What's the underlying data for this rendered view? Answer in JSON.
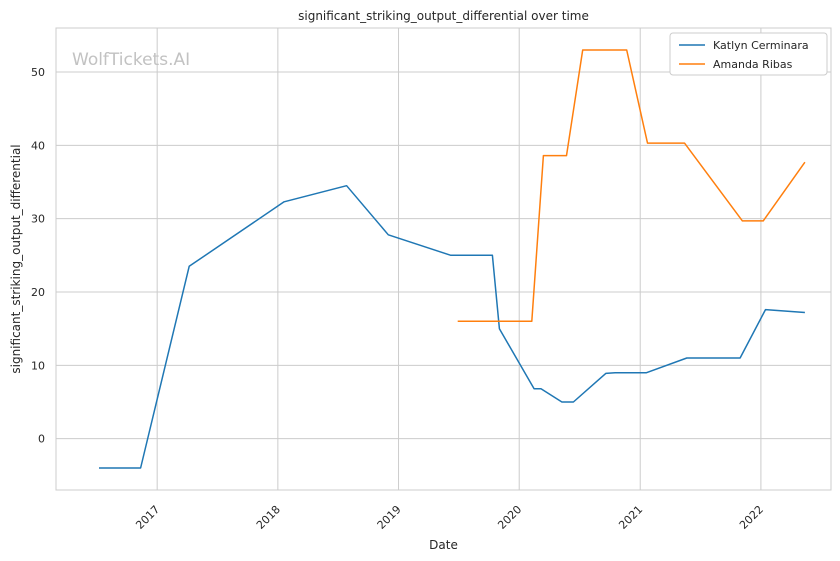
{
  "chart_data": {
    "type": "line",
    "title": "significant_striking_output_differential over time",
    "xlabel": "Date",
    "ylabel": "significant_striking_output_differential",
    "watermark": "WolfTickets.AI",
    "x_type": "date",
    "xlim": [
      "2016-03-01",
      "2022-08-01"
    ],
    "ylim": [
      -7,
      56
    ],
    "x_ticks": [
      {
        "date": "2017-01-01",
        "label": "2017"
      },
      {
        "date": "2018-01-01",
        "label": "2018"
      },
      {
        "date": "2019-01-01",
        "label": "2019"
      },
      {
        "date": "2020-01-01",
        "label": "2020"
      },
      {
        "date": "2021-01-01",
        "label": "2021"
      },
      {
        "date": "2022-01-01",
        "label": "2022"
      }
    ],
    "y_ticks": [
      0,
      10,
      20,
      30,
      40,
      50
    ],
    "grid": true,
    "legend_position": "top-right",
    "series": [
      {
        "name": "Katlyn Cerminara",
        "color": "#1f77b4",
        "points": [
          {
            "x": "2016-07-09",
            "y": -4.0
          },
          {
            "x": "2016-11-12",
            "y": -4.0
          },
          {
            "x": "2017-04-08",
            "y": 23.5
          },
          {
            "x": "2018-01-20",
            "y": 32.3
          },
          {
            "x": "2018-07-28",
            "y": 34.5
          },
          {
            "x": "2018-12-01",
            "y": 27.8
          },
          {
            "x": "2019-06-08",
            "y": 25.0
          },
          {
            "x": "2019-10-12",
            "y": 25.0
          },
          {
            "x": "2019-11-02",
            "y": 15.0
          },
          {
            "x": "2020-02-15",
            "y": 6.8
          },
          {
            "x": "2020-03-07",
            "y": 6.8
          },
          {
            "x": "2020-05-09",
            "y": 5.0
          },
          {
            "x": "2020-06-13",
            "y": 5.0
          },
          {
            "x": "2020-09-19",
            "y": 8.9
          },
          {
            "x": "2020-10-17",
            "y": 9.0
          },
          {
            "x": "2021-01-20",
            "y": 9.0
          },
          {
            "x": "2021-05-22",
            "y": 11.0
          },
          {
            "x": "2021-10-30",
            "y": 11.0
          },
          {
            "x": "2022-01-15",
            "y": 17.6
          },
          {
            "x": "2022-05-14",
            "y": 17.2
          }
        ]
      },
      {
        "name": "Amanda Ribas",
        "color": "#ff7f0e",
        "points": [
          {
            "x": "2019-06-29",
            "y": 16.0
          },
          {
            "x": "2020-02-08",
            "y": 16.0
          },
          {
            "x": "2020-03-14",
            "y": 38.6
          },
          {
            "x": "2020-05-23",
            "y": 38.6
          },
          {
            "x": "2020-07-11",
            "y": 53.0
          },
          {
            "x": "2020-11-21",
            "y": 53.0
          },
          {
            "x": "2021-01-23",
            "y": 40.3
          },
          {
            "x": "2021-05-15",
            "y": 40.3
          },
          {
            "x": "2021-11-06",
            "y": 29.7
          },
          {
            "x": "2022-01-08",
            "y": 29.7
          },
          {
            "x": "2022-05-14",
            "y": 37.7
          }
        ]
      }
    ]
  }
}
